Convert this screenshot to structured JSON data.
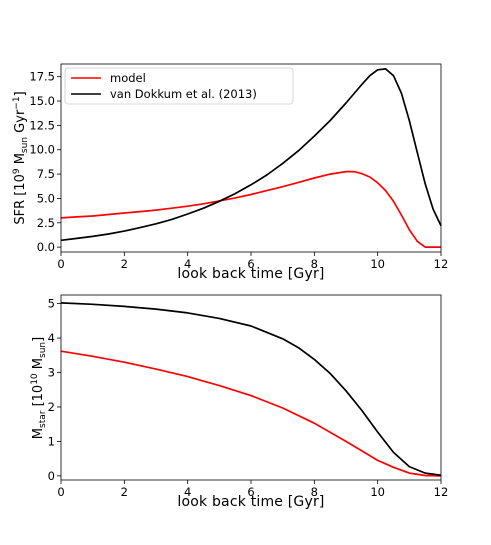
{
  "chart_data": [
    {
      "type": "line",
      "xlabel": "look back time  [Gyr]",
      "ylabel": {
        "pre": "SFR  [10",
        "sup1": "9",
        "mid": " M",
        "sub": "sun",
        "post": " Gyr",
        "sup2": "−1",
        "end": "]"
      },
      "xlim": [
        0,
        12
      ],
      "ylim": [
        -0.5,
        18.8
      ],
      "xticks": [
        "0",
        "2",
        "4",
        "6",
        "8",
        "10",
        "12"
      ],
      "yticks": [
        "0.0",
        "2.5",
        "5.0",
        "7.5",
        "10.0",
        "12.5",
        "15.0",
        "17.5"
      ],
      "legend": {
        "placement": "upper-left"
      },
      "series": [
        {
          "name": "model",
          "color": "#ff0000",
          "x": [
            0,
            0.5,
            1,
            1.5,
            2,
            2.5,
            3,
            3.5,
            4,
            4.5,
            5,
            5.5,
            6,
            6.5,
            7,
            7.5,
            8,
            8.5,
            9,
            9.25,
            9.5,
            9.75,
            10,
            10.25,
            10.5,
            10.75,
            11,
            11.25,
            11.5,
            11.6,
            11.7,
            11.8,
            12
          ],
          "y": [
            3.0,
            3.1,
            3.2,
            3.35,
            3.5,
            3.65,
            3.8,
            4.0,
            4.2,
            4.45,
            4.75,
            5.05,
            5.4,
            5.8,
            6.2,
            6.65,
            7.1,
            7.5,
            7.75,
            7.75,
            7.55,
            7.2,
            6.6,
            5.8,
            4.7,
            3.3,
            1.8,
            0.6,
            0.0,
            0.0,
            0.0,
            0.0,
            0.0
          ]
        },
        {
          "name": "van Dokkum et al. (2013)",
          "color": "#000000",
          "x": [
            0,
            0.5,
            1,
            1.5,
            2,
            2.5,
            3,
            3.5,
            4,
            4.5,
            5,
            5.5,
            6,
            6.5,
            7,
            7.5,
            8,
            8.5,
            9,
            9.5,
            9.75,
            10,
            10.25,
            10.5,
            10.75,
            11,
            11.25,
            11.5,
            11.75,
            12
          ],
          "y": [
            0.7,
            0.9,
            1.1,
            1.35,
            1.65,
            2.0,
            2.4,
            2.85,
            3.4,
            4.0,
            4.7,
            5.5,
            6.4,
            7.4,
            8.6,
            9.9,
            11.4,
            13.0,
            14.8,
            16.7,
            17.6,
            18.2,
            18.3,
            17.6,
            15.8,
            13.0,
            9.7,
            6.5,
            3.9,
            2.2
          ]
        }
      ]
    },
    {
      "type": "line",
      "xlabel": "look back time  [Gyr]",
      "ylabel": {
        "pre": "M",
        "sub1": "star",
        "mid": "  [10",
        "sup": "10",
        "mid2": " M",
        "sub2": "sun",
        "end": "]"
      },
      "xlim": [
        0,
        12
      ],
      "ylim": [
        -0.12,
        5.25
      ],
      "xticks": [
        "0",
        "2",
        "4",
        "6",
        "8",
        "10",
        "12"
      ],
      "yticks": [
        "0",
        "1",
        "2",
        "3",
        "4",
        "5"
      ],
      "series": [
        {
          "name": "model",
          "color": "#ff0000",
          "x": [
            0,
            1,
            2,
            3,
            4,
            5,
            6,
            7,
            8,
            9,
            10,
            10.5,
            11,
            11.5,
            12
          ],
          "y": [
            3.62,
            3.47,
            3.3,
            3.1,
            2.88,
            2.62,
            2.33,
            1.97,
            1.53,
            1.0,
            0.45,
            0.25,
            0.08,
            0.01,
            0.0
          ]
        },
        {
          "name": "van Dokkum et al. (2013)",
          "color": "#000000",
          "x": [
            0,
            1,
            2,
            3,
            4,
            5,
            6,
            7,
            7.5,
            8,
            8.5,
            9,
            9.5,
            10,
            10.5,
            11,
            11.5,
            12
          ],
          "y": [
            5.02,
            4.98,
            4.92,
            4.84,
            4.73,
            4.57,
            4.35,
            3.98,
            3.72,
            3.38,
            2.97,
            2.47,
            1.9,
            1.27,
            0.68,
            0.27,
            0.08,
            0.02
          ]
        }
      ]
    }
  ]
}
